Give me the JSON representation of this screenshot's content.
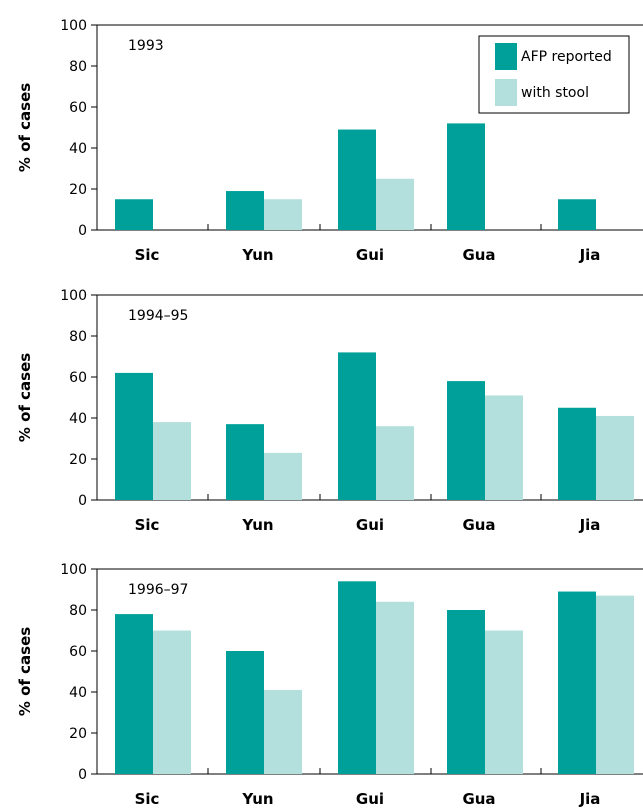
{
  "chart_data": [
    {
      "type": "bar",
      "period_label": "1993",
      "ylabel": "% of cases",
      "ylim": [
        0,
        100
      ],
      "yticks": [
        0,
        20,
        40,
        60,
        80,
        100
      ],
      "categories": [
        "Sic",
        "Yun",
        "Gui",
        "Gua",
        "Jia"
      ],
      "series": [
        {
          "name": "AFP reported",
          "color": "#00a09a",
          "values": [
            15,
            19,
            49,
            52,
            15
          ]
        },
        {
          "name": "with stool",
          "color": "#b3e0dc",
          "values": [
            0,
            15,
            25,
            0,
            0
          ]
        }
      ],
      "legend": "top-right"
    },
    {
      "type": "bar",
      "period_label": "1994–95",
      "ylabel": "% of cases",
      "ylim": [
        0,
        100
      ],
      "yticks": [
        0,
        20,
        40,
        60,
        80,
        100
      ],
      "categories": [
        "Sic",
        "Yun",
        "Gui",
        "Gua",
        "Jia"
      ],
      "series": [
        {
          "name": "AFP reported",
          "color": "#00a09a",
          "values": [
            62,
            37,
            72,
            58,
            45
          ]
        },
        {
          "name": "with stool",
          "color": "#b3e0dc",
          "values": [
            38,
            23,
            36,
            51,
            41
          ]
        }
      ]
    },
    {
      "type": "bar",
      "period_label": "1996–97",
      "ylabel": "% of cases",
      "ylim": [
        0,
        100
      ],
      "yticks": [
        0,
        20,
        40,
        60,
        80,
        100
      ],
      "categories": [
        "Sic",
        "Yun",
        "Gui",
        "Gua",
        "Jia"
      ],
      "series": [
        {
          "name": "AFP reported",
          "color": "#00a09a",
          "values": [
            78,
            60,
            94,
            80,
            89
          ]
        },
        {
          "name": "with stool",
          "color": "#b3e0dc",
          "values": [
            70,
            41,
            84,
            70,
            87
          ]
        }
      ]
    }
  ]
}
